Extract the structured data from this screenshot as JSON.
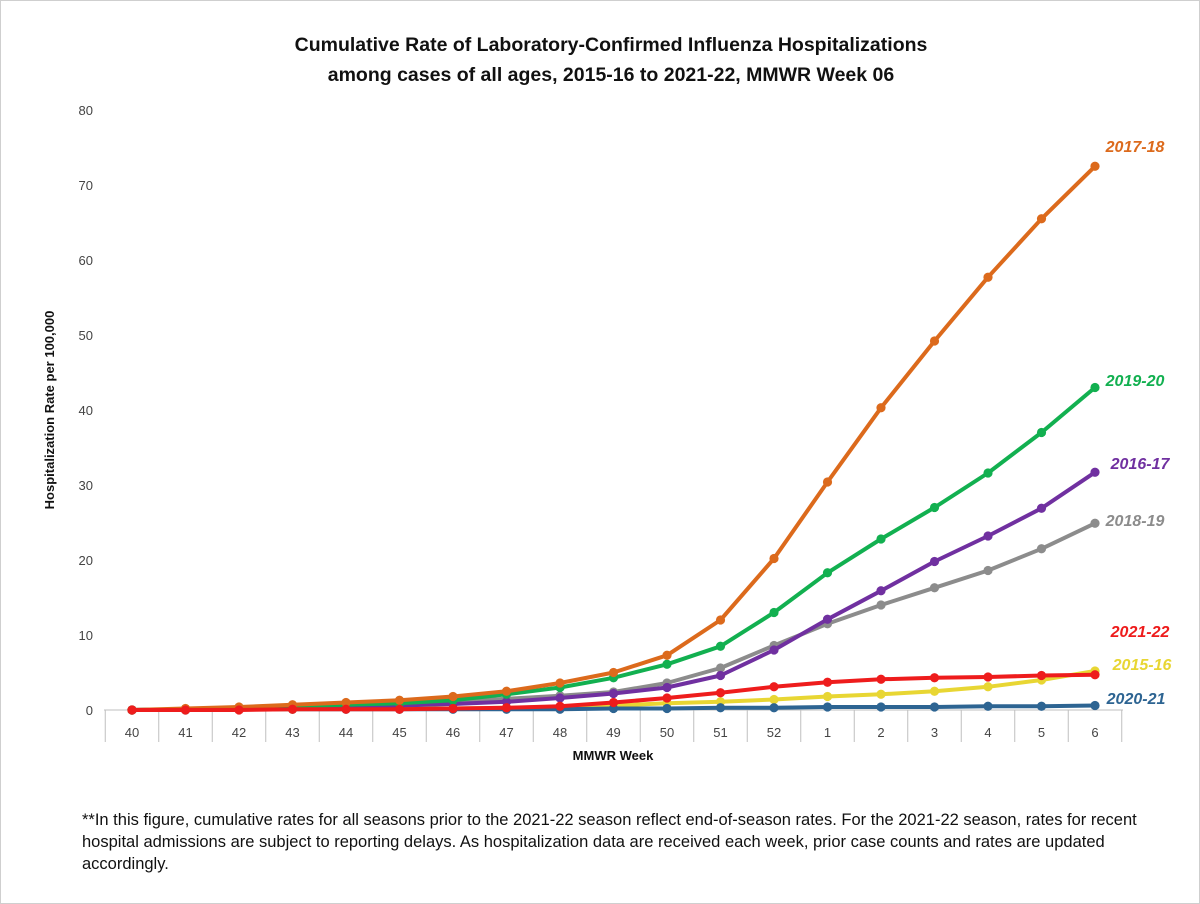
{
  "chart_data": {
    "type": "line",
    "title_lines": [
      "Cumulative Rate of Laboratory-Confirmed Influenza Hospitalizations",
      "among cases of all ages, 2015-16 to 2021-22, MMWR  Week 06"
    ],
    "xlabel": "MMWR Week",
    "ylabel": "Hospitalization  Rate per 100,000",
    "ylim": [
      0,
      80
    ],
    "yticks": [
      0,
      10,
      20,
      30,
      40,
      50,
      60,
      70,
      80
    ],
    "grid": false,
    "categories": [
      "40",
      "41",
      "42",
      "43",
      "44",
      "45",
      "46",
      "47",
      "48",
      "49",
      "50",
      "51",
      "52",
      "1",
      "2",
      "3",
      "4",
      "5",
      "6"
    ],
    "series": [
      {
        "name": "2015-16",
        "color": "#e8d633",
        "values": [
          0.0,
          0.1,
          0.1,
          0.1,
          0.2,
          0.2,
          0.2,
          0.3,
          0.4,
          0.6,
          0.9,
          1.1,
          1.4,
          1.8,
          2.1,
          2.5,
          3.1,
          4.0,
          5.2
        ]
      },
      {
        "name": "2020-21",
        "color": "#2d6492",
        "values": [
          0.0,
          0.0,
          0.1,
          0.1,
          0.1,
          0.1,
          0.1,
          0.1,
          0.1,
          0.2,
          0.2,
          0.3,
          0.3,
          0.4,
          0.4,
          0.4,
          0.5,
          0.5,
          0.6
        ]
      },
      {
        "name": "2018-19",
        "color": "#8c8c8c",
        "values": [
          0.0,
          0.1,
          0.2,
          0.4,
          0.6,
          0.8,
          1.1,
          1.5,
          1.9,
          2.4,
          3.6,
          5.6,
          8.6,
          11.5,
          14.0,
          16.3,
          18.6,
          21.5,
          24.9
        ]
      },
      {
        "name": "2016-17",
        "color": "#7030a0",
        "values": [
          0.0,
          0.1,
          0.2,
          0.4,
          0.5,
          0.6,
          0.8,
          1.1,
          1.6,
          2.2,
          3.0,
          4.6,
          8.0,
          12.1,
          15.9,
          19.8,
          23.2,
          26.9,
          31.7
        ]
      },
      {
        "name": "2019-20",
        "color": "#12b050",
        "values": [
          0.0,
          0.1,
          0.3,
          0.5,
          0.7,
          0.9,
          1.3,
          2.1,
          3.0,
          4.3,
          6.1,
          8.5,
          13.0,
          18.3,
          22.8,
          27.0,
          31.6,
          37.0,
          43.0
        ]
      },
      {
        "name": "2017-18",
        "color": "#dc6a1c",
        "values": [
          0.0,
          0.2,
          0.4,
          0.7,
          1.0,
          1.3,
          1.8,
          2.5,
          3.6,
          5.0,
          7.3,
          12.0,
          20.2,
          30.4,
          40.3,
          49.2,
          57.7,
          65.5,
          72.5
        ]
      },
      {
        "name": "2021-22",
        "color": "#ee1c1c",
        "values": [
          0.0,
          0.0,
          0.0,
          0.1,
          0.1,
          0.1,
          0.2,
          0.3,
          0.5,
          1.0,
          1.6,
          2.3,
          3.1,
          3.7,
          4.1,
          4.3,
          4.4,
          4.6,
          4.7
        ]
      }
    ],
    "series_labels": [
      {
        "name": "2017-18",
        "text": "2017-18",
        "color": "#dc6a1c"
      },
      {
        "name": "2019-20",
        "text": "2019-20",
        "color": "#12b050"
      },
      {
        "name": "2016-17",
        "text": "2016-17",
        "color": "#7030a0"
      },
      {
        "name": "2018-19",
        "text": "2018-19",
        "color": "#8c8c8c"
      },
      {
        "name": "2021-22",
        "text": "2021-22",
        "color": "#ee1c1c"
      },
      {
        "name": "2015-16",
        "text": "2015-16",
        "color": "#e8d633"
      },
      {
        "name": "2020-21",
        "text": "2020-21",
        "color": "#2d6492"
      }
    ]
  },
  "footnote": "**In this figure, cumulative rates for all seasons prior to the 2021-22 season reflect end-of-season rates. For the 2021-22 season, rates for recent hospital admissions are subject to reporting delays. As hospitalization data are received each week, prior case counts and rates are updated accordingly."
}
